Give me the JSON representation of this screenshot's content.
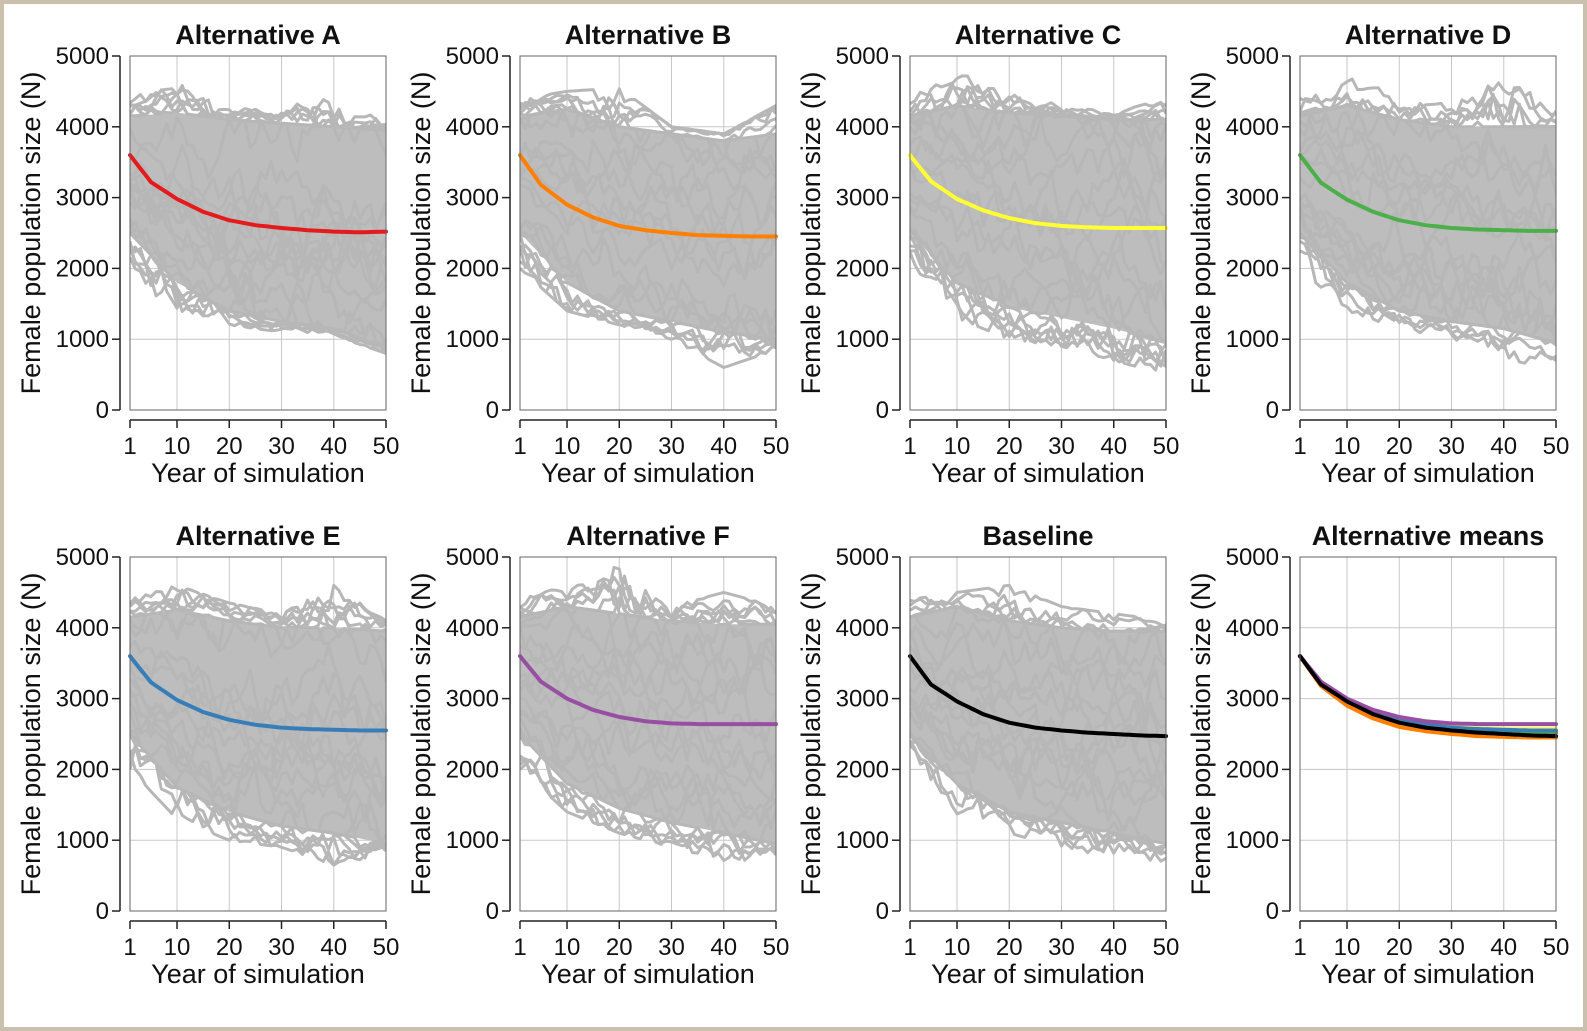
{
  "chart_data": [
    {
      "type": "line",
      "title": "Alternative A",
      "xlabel": "Year of simulation",
      "ylabel": "Female population size (N)",
      "xlim": [
        1,
        50
      ],
      "ylim": [
        0,
        5000
      ],
      "xticks": [
        1,
        10,
        20,
        30,
        40,
        50
      ],
      "yticks": [
        0,
        1000,
        2000,
        3000,
        4000,
        5000
      ],
      "grid": true,
      "mean_color": "#e41a1c",
      "series": [
        {
          "x": [
            1,
            5,
            10,
            15,
            20,
            25,
            30,
            35,
            40,
            45,
            50
          ],
          "y": [
            3600,
            3220,
            2980,
            2800,
            2680,
            2610,
            2570,
            2540,
            2520,
            2510,
            2520
          ]
        }
      ],
      "envelope": {
        "x": [
          1,
          10,
          20,
          30,
          40,
          50
        ],
        "upper": [
          4150,
          4200,
          4100,
          4050,
          4000,
          3950
        ],
        "lower": [
          2500,
          1800,
          1400,
          1250,
          1150,
          900
        ],
        "max": [
          4400,
          4650,
          4300,
          4200,
          4600,
          4100
        ],
        "min": [
          2000,
          1300,
          1200,
          1100,
          1050,
          800
        ]
      }
    },
    {
      "type": "line",
      "title": "Alternative B",
      "xlabel": "Year of simulation",
      "ylabel": "Female population size (N)",
      "xlim": [
        1,
        50
      ],
      "ylim": [
        0,
        5000
      ],
      "xticks": [
        1,
        10,
        20,
        30,
        40,
        50
      ],
      "yticks": [
        0,
        1000,
        2000,
        3000,
        4000,
        5000
      ],
      "grid": true,
      "mean_color": "#ff7f00",
      "series": [
        {
          "x": [
            1,
            5,
            10,
            15,
            20,
            25,
            30,
            35,
            40,
            45,
            50
          ],
          "y": [
            3600,
            3180,
            2900,
            2720,
            2600,
            2540,
            2500,
            2470,
            2460,
            2450,
            2450
          ]
        }
      ],
      "envelope": {
        "x": [
          1,
          10,
          20,
          30,
          40,
          50
        ],
        "upper": [
          4150,
          4250,
          4000,
          3900,
          3800,
          3900
        ],
        "lower": [
          2500,
          1800,
          1400,
          1250,
          1100,
          1000
        ],
        "max": [
          4400,
          4500,
          4550,
          4000,
          3900,
          4300
        ],
        "min": [
          2000,
          1400,
          1200,
          1000,
          600,
          850
        ]
      }
    },
    {
      "type": "line",
      "title": "Alternative C",
      "xlabel": "Year of simulation",
      "ylabel": "Female population size (N)",
      "xlim": [
        1,
        50
      ],
      "ylim": [
        0,
        5000
      ],
      "xticks": [
        1,
        10,
        20,
        30,
        40,
        50
      ],
      "yticks": [
        0,
        1000,
        2000,
        3000,
        4000,
        5000
      ],
      "grid": true,
      "mean_color": "#ffff33",
      "series": [
        {
          "x": [
            1,
            5,
            10,
            15,
            20,
            25,
            30,
            35,
            40,
            45,
            50
          ],
          "y": [
            3600,
            3230,
            2980,
            2820,
            2710,
            2640,
            2600,
            2580,
            2570,
            2570,
            2570
          ]
        }
      ],
      "envelope": {
        "x": [
          1,
          10,
          20,
          30,
          40,
          50
        ],
        "upper": [
          4150,
          4300,
          4200,
          4150,
          4100,
          4100
        ],
        "lower": [
          2500,
          1800,
          1450,
          1300,
          1150,
          950
        ],
        "max": [
          4400,
          4800,
          4500,
          4300,
          4200,
          4400
        ],
        "min": [
          2000,
          1300,
          1000,
          900,
          700,
          500
        ]
      }
    },
    {
      "type": "line",
      "title": "Alternative D",
      "xlabel": "Year of simulation",
      "ylabel": "Female population size (N)",
      "xlim": [
        1,
        50
      ],
      "ylim": [
        0,
        5000
      ],
      "xticks": [
        1,
        10,
        20,
        30,
        40,
        50
      ],
      "yticks": [
        0,
        1000,
        2000,
        3000,
        4000,
        5000
      ],
      "grid": true,
      "mean_color": "#4daf4a",
      "series": [
        {
          "x": [
            1,
            5,
            10,
            15,
            20,
            25,
            30,
            35,
            40,
            45,
            50
          ],
          "y": [
            3600,
            3210,
            2970,
            2800,
            2680,
            2610,
            2570,
            2550,
            2540,
            2530,
            2530
          ]
        }
      ],
      "envelope": {
        "x": [
          1,
          10,
          20,
          30,
          40,
          50
        ],
        "upper": [
          4150,
          4300,
          4100,
          4000,
          4000,
          4000
        ],
        "lower": [
          2500,
          1800,
          1400,
          1250,
          1150,
          950
        ],
        "max": [
          4400,
          4700,
          4450,
          4300,
          4700,
          4300
        ],
        "min": [
          2000,
          1400,
          1150,
          1000,
          700,
          600
        ]
      }
    },
    {
      "type": "line",
      "title": "Alternative E",
      "xlabel": "Year of simulation",
      "ylabel": "Female population size (N)",
      "xlim": [
        1,
        50
      ],
      "ylim": [
        0,
        5000
      ],
      "xticks": [
        1,
        10,
        20,
        30,
        40,
        50
      ],
      "yticks": [
        0,
        1000,
        2000,
        3000,
        4000,
        5000
      ],
      "grid": true,
      "mean_color": "#377eb8",
      "series": [
        {
          "x": [
            1,
            5,
            10,
            15,
            20,
            25,
            30,
            35,
            40,
            45,
            50
          ],
          "y": [
            3600,
            3230,
            2980,
            2810,
            2700,
            2630,
            2590,
            2570,
            2560,
            2550,
            2550
          ]
        }
      ],
      "envelope": {
        "x": [
          1,
          10,
          20,
          30,
          40,
          50
        ],
        "upper": [
          4150,
          4250,
          4100,
          4000,
          4000,
          3950
        ],
        "lower": [
          2500,
          1750,
          1400,
          1200,
          1100,
          950
        ],
        "max": [
          4400,
          4600,
          4350,
          4200,
          4600,
          4100
        ],
        "min": [
          2000,
          1300,
          1000,
          900,
          650,
          800
        ]
      }
    },
    {
      "type": "line",
      "title": "Alternative F",
      "xlabel": "Year of simulation",
      "ylabel": "Female population size (N)",
      "xlim": [
        1,
        50
      ],
      "ylim": [
        0,
        5000
      ],
      "xticks": [
        1,
        10,
        20,
        30,
        40,
        50
      ],
      "yticks": [
        0,
        1000,
        2000,
        3000,
        4000,
        5000
      ],
      "grid": true,
      "mean_color": "#984ea3",
      "series": [
        {
          "x": [
            1,
            5,
            10,
            15,
            20,
            25,
            30,
            35,
            40,
            45,
            50
          ],
          "y": [
            3600,
            3240,
            3000,
            2840,
            2740,
            2680,
            2650,
            2640,
            2640,
            2640,
            2640
          ]
        }
      ],
      "envelope": {
        "x": [
          1,
          10,
          20,
          30,
          40,
          50
        ],
        "upper": [
          4150,
          4300,
          4200,
          4100,
          4050,
          4050
        ],
        "lower": [
          2500,
          1800,
          1450,
          1250,
          1100,
          950
        ],
        "max": [
          4400,
          4600,
          5200,
          4300,
          4500,
          4300
        ],
        "min": [
          2000,
          1400,
          1100,
          900,
          600,
          700
        ]
      }
    },
    {
      "type": "line",
      "title": "Baseline",
      "xlabel": "Year of simulation",
      "ylabel": "Female population size (N)",
      "xlim": [
        1,
        50
      ],
      "ylim": [
        0,
        5000
      ],
      "xticks": [
        1,
        10,
        20,
        30,
        40,
        50
      ],
      "yticks": [
        0,
        1000,
        2000,
        3000,
        4000,
        5000
      ],
      "grid": true,
      "mean_color": "#000000",
      "series": [
        {
          "x": [
            1,
            5,
            10,
            15,
            20,
            25,
            30,
            35,
            40,
            45,
            50
          ],
          "y": [
            3600,
            3200,
            2960,
            2780,
            2660,
            2590,
            2550,
            2520,
            2500,
            2480,
            2470
          ]
        }
      ],
      "envelope": {
        "x": [
          1,
          10,
          20,
          30,
          40,
          50
        ],
        "upper": [
          4150,
          4300,
          4100,
          4000,
          3950,
          3950
        ],
        "lower": [
          2500,
          1800,
          1400,
          1250,
          1100,
          950
        ],
        "max": [
          4400,
          4500,
          4600,
          4300,
          4200,
          4100
        ],
        "min": [
          2000,
          1300,
          1100,
          900,
          750,
          700
        ]
      }
    },
    {
      "type": "line",
      "title": "Alternative means",
      "xlabel": "Year of simulation",
      "ylabel": "Female population size (N)",
      "xlim": [
        1,
        50
      ],
      "ylim": [
        0,
        5000
      ],
      "xticks": [
        1,
        10,
        20,
        30,
        40,
        50
      ],
      "yticks": [
        0,
        1000,
        2000,
        3000,
        4000,
        5000
      ],
      "grid": true,
      "series": [
        {
          "color": "#e41a1c",
          "x": [
            1,
            5,
            10,
            15,
            20,
            25,
            30,
            35,
            40,
            45,
            50
          ],
          "y": [
            3600,
            3220,
            2980,
            2800,
            2680,
            2610,
            2570,
            2540,
            2520,
            2510,
            2520
          ]
        },
        {
          "color": "#ff7f00",
          "x": [
            1,
            5,
            10,
            15,
            20,
            25,
            30,
            35,
            40,
            45,
            50
          ],
          "y": [
            3600,
            3180,
            2900,
            2720,
            2600,
            2540,
            2500,
            2470,
            2460,
            2450,
            2450
          ]
        },
        {
          "color": "#ffff33",
          "x": [
            1,
            5,
            10,
            15,
            20,
            25,
            30,
            35,
            40,
            45,
            50
          ],
          "y": [
            3600,
            3230,
            2980,
            2820,
            2710,
            2640,
            2600,
            2580,
            2570,
            2570,
            2570
          ]
        },
        {
          "color": "#4daf4a",
          "x": [
            1,
            5,
            10,
            15,
            20,
            25,
            30,
            35,
            40,
            45,
            50
          ],
          "y": [
            3600,
            3210,
            2970,
            2800,
            2680,
            2610,
            2570,
            2550,
            2540,
            2530,
            2530
          ]
        },
        {
          "color": "#377eb8",
          "x": [
            1,
            5,
            10,
            15,
            20,
            25,
            30,
            35,
            40,
            45,
            50
          ],
          "y": [
            3600,
            3230,
            2980,
            2810,
            2700,
            2630,
            2590,
            2570,
            2560,
            2550,
            2550
          ]
        },
        {
          "color": "#984ea3",
          "x": [
            1,
            5,
            10,
            15,
            20,
            25,
            30,
            35,
            40,
            45,
            50
          ],
          "y": [
            3600,
            3240,
            3000,
            2840,
            2740,
            2680,
            2650,
            2640,
            2640,
            2640,
            2640
          ]
        },
        {
          "color": "#000000",
          "x": [
            1,
            5,
            10,
            15,
            20,
            25,
            30,
            35,
            40,
            45,
            50
          ],
          "y": [
            3600,
            3200,
            2960,
            2780,
            2660,
            2590,
            2550,
            2520,
            2500,
            2480,
            2470
          ]
        }
      ]
    }
  ]
}
